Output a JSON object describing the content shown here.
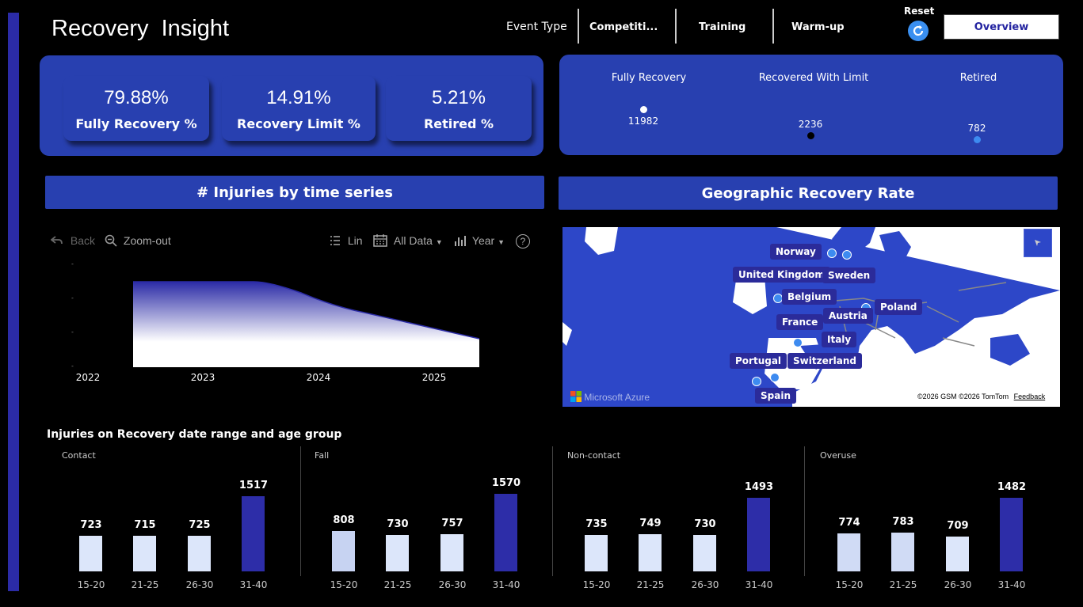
{
  "header": {
    "title": "Recovery  Insight",
    "event_type_label": "Event Type",
    "slicers": [
      "Competiti...",
      "Training",
      "Warm-up"
    ],
    "reset_label": "Reset",
    "reset_icon": "refresh-icon",
    "overview_label": "Overview"
  },
  "kpis": [
    {
      "value": "79.88%",
      "label": "Fully Recovery %"
    },
    {
      "value": "14.91%",
      "label": "Recovery Limit %"
    },
    {
      "value": "5.21%",
      "label": "Retired %"
    }
  ],
  "outcome_dots": {
    "items": [
      {
        "label": "Fully Recovery",
        "value": "11982",
        "color": "#ffffff"
      },
      {
        "label": "Recovered With Limit",
        "value": "2236",
        "color": "#000000"
      },
      {
        "label": "Retired",
        "value": "782",
        "color": "#3d8bf0"
      }
    ]
  },
  "time_series": {
    "title": "# Injuries by time series",
    "toolbar": {
      "back": "Back",
      "zoom_out": "Zoom-out",
      "lin": "Lin",
      "all_data": "All Data",
      "year": "Year",
      "help": "?"
    },
    "chart_data": {
      "type": "area",
      "x_ticks": [
        "2022",
        "2023",
        "2024",
        "2025"
      ],
      "accent": "#2b2ba6"
    }
  },
  "geo": {
    "title": "Geographic Recovery Rate",
    "labels": [
      "Norway",
      "United Kingdom",
      "Sweden",
      "Belgium",
      "Poland",
      "Austria",
      "France",
      "Italy",
      "Portugal",
      "Switzerland",
      "Spain"
    ],
    "attribution_logo": "Microsoft Azure",
    "attribution_text": "©2026 GSM  ©2026 TomTom",
    "feedback": "Feedback"
  },
  "age_chart": {
    "title": "Injuries on Recovery date range and age group",
    "chart_data": {
      "type": "bar",
      "categories": [
        "15-20",
        "21-25",
        "26-30",
        "31-40"
      ],
      "panels": [
        {
          "name": "Contact",
          "values": [
            723,
            715,
            725,
            1517
          ]
        },
        {
          "name": "Fall",
          "values": [
            808,
            730,
            757,
            1570
          ]
        },
        {
          "name": "Non-contact",
          "values": [
            735,
            749,
            730,
            1493
          ]
        },
        {
          "name": "Overuse",
          "values": [
            774,
            783,
            709,
            1482
          ]
        }
      ]
    }
  }
}
